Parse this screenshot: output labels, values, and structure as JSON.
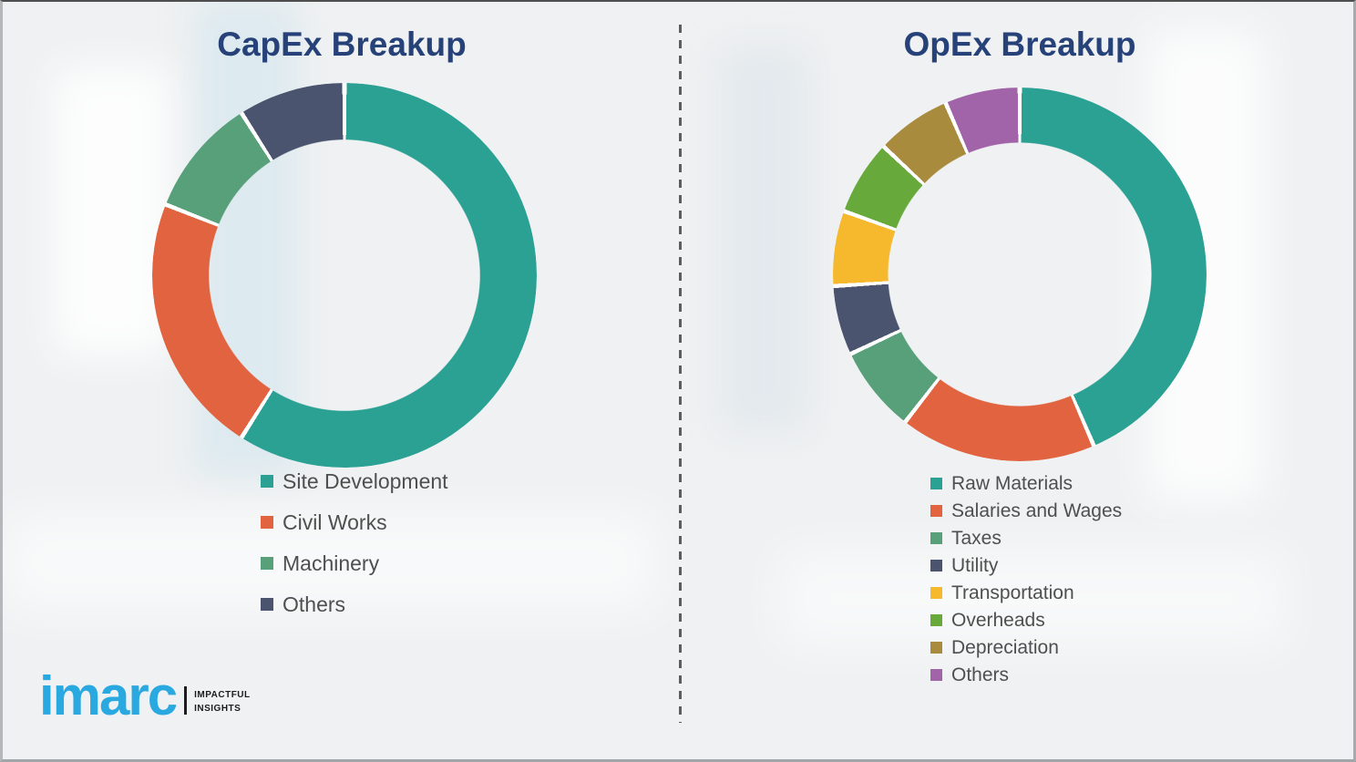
{
  "logo": {
    "brand": "imarc",
    "tagline_line1": "IMPACTFUL",
    "tagline_line2": "INSIGHTS",
    "brand_color": "#2AA9E0"
  },
  "colors": {
    "title": "#274279",
    "legend_text": "#4f4f4f",
    "background": "#EFF1F2",
    "divider_dash": "#5D5D5D"
  },
  "chart_data": [
    {
      "type": "pie",
      "variant": "donut",
      "title": "CapEx Breakup",
      "legend_position": "below-left",
      "start_angle_deg": 0,
      "direction": "clockwise",
      "donut_hole_pct": 71,
      "labels": [
        "Site Development",
        "Civil Works",
        "Machinery",
        "Others"
      ],
      "values": [
        59,
        22,
        10,
        9
      ],
      "colors": [
        "#2BA194",
        "#E2633F",
        "#57A07A",
        "#4A546F"
      ]
    },
    {
      "type": "pie",
      "variant": "donut",
      "title": "OpEx Breakup",
      "legend_position": "below-left",
      "start_angle_deg": 0,
      "direction": "clockwise",
      "donut_hole_pct": 71,
      "labels": [
        "Raw Materials",
        "Salaries and Wages",
        "Taxes",
        "Utility",
        "Transportation",
        "Overheads",
        "Depreciation",
        "Others"
      ],
      "values": [
        43.5,
        17,
        7.5,
        6,
        6.5,
        6.5,
        6.5,
        6.5
      ],
      "colors": [
        "#2BA194",
        "#E2633F",
        "#57A07A",
        "#4A546F",
        "#F6B82C",
        "#68A93C",
        "#A98B3E",
        "#A164A9"
      ]
    }
  ]
}
